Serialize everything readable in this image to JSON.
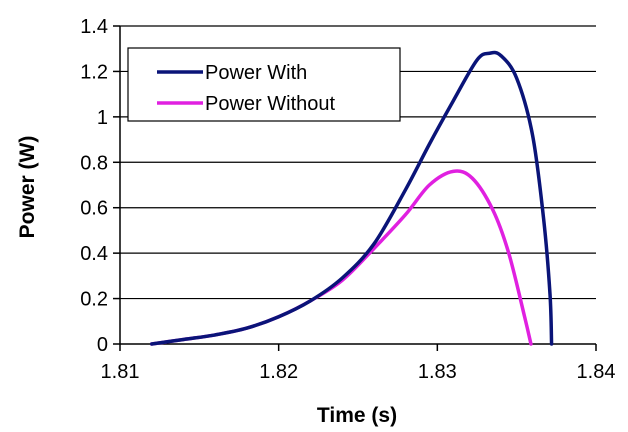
{
  "chart_data": {
    "type": "line",
    "xlabel": "Time (s)",
    "ylabel": "Power (W)",
    "xlim": [
      1.81,
      1.84
    ],
    "ylim": [
      0,
      1.4
    ],
    "x_ticks": [
      "1.81",
      "1.82",
      "1.83",
      "1.84"
    ],
    "y_ticks": [
      "0",
      "0.2",
      "0.4",
      "0.6",
      "0.8",
      "1",
      "1.2",
      "1.4"
    ],
    "grid": "horizontal",
    "legend_position": "top-left",
    "series": [
      {
        "name": "Power With",
        "color": "#0a1478",
        "points": [
          [
            1.812,
            0.0
          ],
          [
            1.814,
            0.02
          ],
          [
            1.816,
            0.04
          ],
          [
            1.818,
            0.07
          ],
          [
            1.82,
            0.12
          ],
          [
            1.822,
            0.19
          ],
          [
            1.824,
            0.29
          ],
          [
            1.826,
            0.44
          ],
          [
            1.828,
            0.68
          ],
          [
            1.8295,
            0.88
          ],
          [
            1.831,
            1.07
          ],
          [
            1.8325,
            1.25
          ],
          [
            1.8333,
            1.28
          ],
          [
            1.834,
            1.27
          ],
          [
            1.835,
            1.17
          ],
          [
            1.836,
            0.92
          ],
          [
            1.8367,
            0.55
          ],
          [
            1.8371,
            0.22
          ],
          [
            1.8372,
            0.0
          ]
        ]
      },
      {
        "name": "Power Without",
        "color": "#e020e0",
        "points": [
          [
            1.812,
            0.0
          ],
          [
            1.814,
            0.02
          ],
          [
            1.816,
            0.04
          ],
          [
            1.818,
            0.07
          ],
          [
            1.82,
            0.12
          ],
          [
            1.822,
            0.19
          ],
          [
            1.824,
            0.28
          ],
          [
            1.826,
            0.42
          ],
          [
            1.828,
            0.57
          ],
          [
            1.8295,
            0.7
          ],
          [
            1.831,
            0.76
          ],
          [
            1.8322,
            0.73
          ],
          [
            1.8335,
            0.59
          ],
          [
            1.8345,
            0.4
          ],
          [
            1.8355,
            0.12
          ],
          [
            1.8359,
            0.0
          ]
        ]
      }
    ]
  }
}
